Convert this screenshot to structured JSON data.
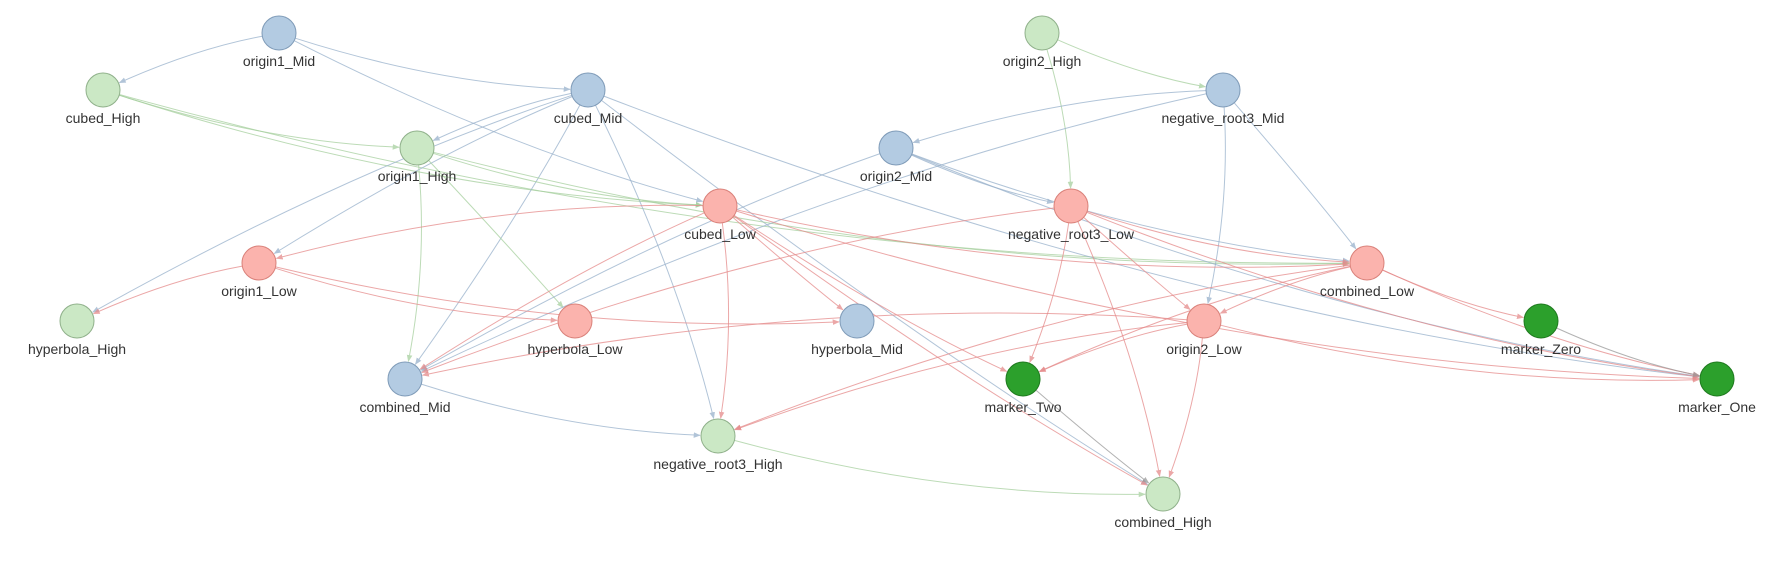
{
  "colors": {
    "high": "#cbe8c5",
    "mid": "#b3cbe2",
    "low": "#fbb3ad",
    "marker": "#2ca02c"
  },
  "nodes": [
    {
      "id": "origin1_Mid",
      "label": "origin1_Mid",
      "group": "mid"
    },
    {
      "id": "cubed_High",
      "label": "cubed_High",
      "group": "high"
    },
    {
      "id": "cubed_Mid",
      "label": "cubed_Mid",
      "group": "mid"
    },
    {
      "id": "origin1_High",
      "label": "origin1_High",
      "group": "high"
    },
    {
      "id": "origin2_High",
      "label": "origin2_High",
      "group": "high"
    },
    {
      "id": "negative_root3_Mid",
      "label": "negative_root3_Mid",
      "group": "mid"
    },
    {
      "id": "origin2_Mid",
      "label": "origin2_Mid",
      "group": "mid"
    },
    {
      "id": "cubed_Low",
      "label": "cubed_Low",
      "group": "low"
    },
    {
      "id": "negative_root3_Low",
      "label": "negative_root3_Low",
      "group": "low"
    },
    {
      "id": "origin1_Low",
      "label": "origin1_Low",
      "group": "low"
    },
    {
      "id": "combined_Low",
      "label": "combined_Low",
      "group": "low"
    },
    {
      "id": "hyperbola_High",
      "label": "hyperbola_High",
      "group": "high"
    },
    {
      "id": "hyperbola_Low",
      "label": "hyperbola_Low",
      "group": "low"
    },
    {
      "id": "hyperbola_Mid",
      "label": "hyperbola_Mid",
      "group": "mid"
    },
    {
      "id": "origin2_Low",
      "label": "origin2_Low",
      "group": "low"
    },
    {
      "id": "marker_Zero",
      "label": "marker_Zero",
      "group": "marker"
    },
    {
      "id": "combined_Mid",
      "label": "combined_Mid",
      "group": "mid"
    },
    {
      "id": "marker_Two",
      "label": "marker_Two",
      "group": "marker"
    },
    {
      "id": "marker_One",
      "label": "marker_One",
      "group": "marker"
    },
    {
      "id": "negative_root3_High",
      "label": "negative_root3_High",
      "group": "high"
    },
    {
      "id": "combined_High",
      "label": "combined_High",
      "group": "high"
    }
  ],
  "edges": [
    [
      "origin1_Mid",
      "cubed_High"
    ],
    [
      "origin1_Mid",
      "cubed_Mid"
    ],
    [
      "origin1_Mid",
      "cubed_Low"
    ],
    [
      "cubed_High",
      "origin1_High"
    ],
    [
      "cubed_High",
      "cubed_Low"
    ],
    [
      "cubed_High",
      "combined_Low"
    ],
    [
      "cubed_Mid",
      "origin1_High"
    ],
    [
      "cubed_Mid",
      "origin1_Low"
    ],
    [
      "cubed_Mid",
      "hyperbola_High"
    ],
    [
      "cubed_Mid",
      "combined_Mid"
    ],
    [
      "cubed_Mid",
      "negative_root3_High"
    ],
    [
      "cubed_Mid",
      "combined_High"
    ],
    [
      "cubed_Mid",
      "marker_One"
    ],
    [
      "origin1_High",
      "hyperbola_Low"
    ],
    [
      "origin1_High",
      "combined_Mid"
    ],
    [
      "origin1_High",
      "cubed_Low"
    ],
    [
      "origin1_High",
      "combined_Low"
    ],
    [
      "origin2_High",
      "negative_root3_Mid"
    ],
    [
      "origin2_High",
      "negative_root3_Low"
    ],
    [
      "negative_root3_Mid",
      "origin2_Mid"
    ],
    [
      "negative_root3_Mid",
      "origin2_Low"
    ],
    [
      "negative_root3_Mid",
      "combined_Low"
    ],
    [
      "negative_root3_Mid",
      "combined_Mid"
    ],
    [
      "origin2_Mid",
      "negative_root3_Low"
    ],
    [
      "origin2_Mid",
      "combined_Low"
    ],
    [
      "origin2_Mid",
      "combined_Mid"
    ],
    [
      "origin2_Mid",
      "marker_One"
    ],
    [
      "cubed_Low",
      "origin1_Low"
    ],
    [
      "cubed_Low",
      "hyperbola_Mid"
    ],
    [
      "cubed_Low",
      "marker_Two"
    ],
    [
      "cubed_Low",
      "negative_root3_High"
    ],
    [
      "cubed_Low",
      "combined_Mid"
    ],
    [
      "cubed_Low",
      "combined_Low"
    ],
    [
      "cubed_Low",
      "marker_One"
    ],
    [
      "cubed_Low",
      "combined_High"
    ],
    [
      "negative_root3_Low",
      "origin2_Low"
    ],
    [
      "negative_root3_Low",
      "combined_Low"
    ],
    [
      "negative_root3_Low",
      "marker_Two"
    ],
    [
      "negative_root3_Low",
      "combined_Mid"
    ],
    [
      "negative_root3_Low",
      "combined_High"
    ],
    [
      "negative_root3_Low",
      "marker_One"
    ],
    [
      "origin1_Low",
      "hyperbola_High"
    ],
    [
      "origin1_Low",
      "hyperbola_Low"
    ],
    [
      "origin1_Low",
      "hyperbola_Mid"
    ],
    [
      "combined_Low",
      "origin2_Low"
    ],
    [
      "combined_Low",
      "marker_Zero"
    ],
    [
      "combined_Low",
      "marker_Two"
    ],
    [
      "combined_Low",
      "marker_One"
    ],
    [
      "combined_Low",
      "negative_root3_High"
    ],
    [
      "origin2_Low",
      "marker_Two"
    ],
    [
      "origin2_Low",
      "combined_Mid"
    ],
    [
      "origin2_Low",
      "negative_root3_High"
    ],
    [
      "origin2_Low",
      "combined_High"
    ],
    [
      "origin2_Low",
      "marker_One"
    ],
    [
      "marker_Zero",
      "marker_One"
    ],
    [
      "combined_Mid",
      "negative_root3_High"
    ],
    [
      "negative_root3_High",
      "combined_High"
    ],
    [
      "marker_Two",
      "combined_High"
    ]
  ]
}
